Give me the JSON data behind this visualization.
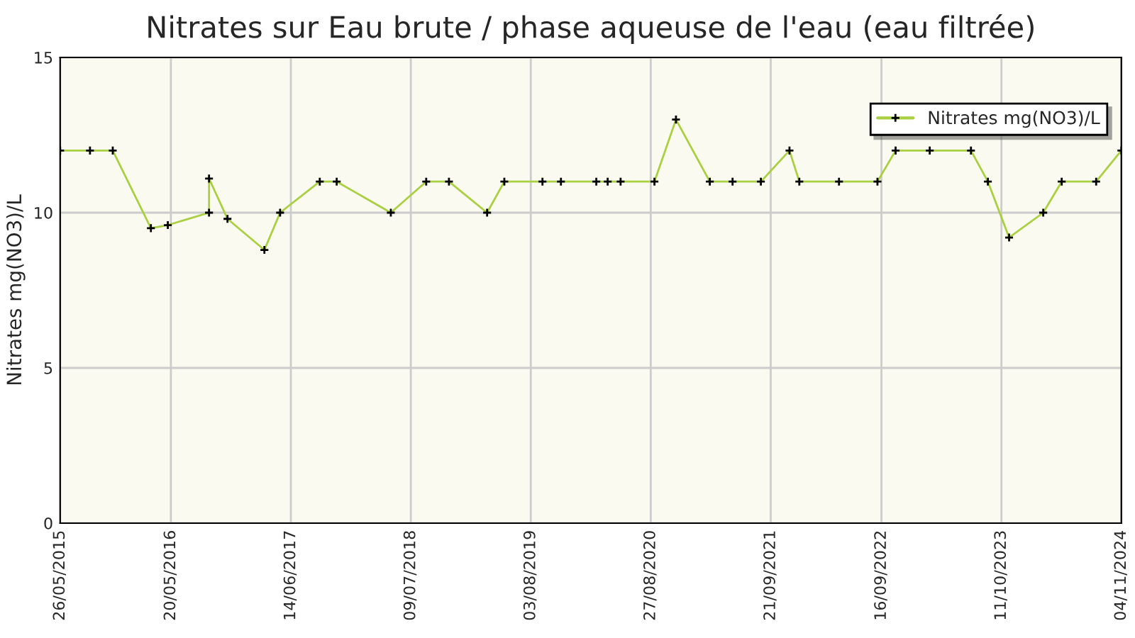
{
  "chart_data": {
    "type": "line",
    "title": "Nitrates sur Eau brute / phase aqueuse de l'eau (eau filtrée)",
    "ylabel": "Nitrates mg(NO3)/L",
    "x": [
      "2015-05-26",
      "2015-08-31",
      "2015-11-13",
      "2016-03-16",
      "2016-05-10",
      "2016-09-21",
      "2016-09-21",
      "2016-11-20",
      "2017-03-20",
      "2017-05-10",
      "2017-09-16",
      "2017-11-10",
      "2018-05-05",
      "2018-08-28",
      "2018-11-10",
      "2019-03-14",
      "2019-05-09",
      "2019-09-10",
      "2019-11-09",
      "2020-03-03",
      "2020-04-09",
      "2020-05-21",
      "2020-09-08",
      "2020-11-17",
      "2021-03-07",
      "2021-05-20",
      "2021-08-20",
      "2021-11-21",
      "2021-12-23",
      "2022-05-01",
      "2022-09-03",
      "2022-11-01",
      "2023-02-20",
      "2023-07-04",
      "2023-08-28",
      "2023-11-05",
      "2024-02-24",
      "2024-04-24",
      "2024-08-14",
      "2024-11-04"
    ],
    "series": [
      {
        "name": "Nitrates mg(NO3)/L",
        "color": "#a8d040",
        "values": [
          12,
          12,
          12,
          9.5,
          9.6,
          10,
          11.1,
          9.8,
          8.8,
          10,
          11,
          11,
          10,
          11,
          11,
          10,
          11,
          11,
          11,
          11,
          11,
          11,
          11,
          13,
          11,
          11,
          11,
          12,
          11,
          11,
          11,
          12,
          12,
          12,
          11,
          9.2,
          10,
          11,
          11,
          12
        ]
      }
    ],
    "xlim": [
      "2015-05-26",
      "2024-11-04"
    ],
    "xticks": [
      {
        "value": "2015-05-26",
        "label": "26/05/2015"
      },
      {
        "value": "2016-05-20",
        "label": "20/05/2016"
      },
      {
        "value": "2017-06-14",
        "label": "14/06/2017"
      },
      {
        "value": "2018-07-09",
        "label": "09/07/2018"
      },
      {
        "value": "2019-08-03",
        "label": "03/08/2019"
      },
      {
        "value": "2020-08-27",
        "label": "27/08/2020"
      },
      {
        "value": "2021-09-21",
        "label": "21/09/2021"
      },
      {
        "value": "2022-09-16",
        "label": "16/09/2022"
      },
      {
        "value": "2023-10-11",
        "label": "11/10/2023"
      },
      {
        "value": "2024-11-04",
        "label": "04/11/2024"
      }
    ],
    "ylim": [
      0,
      15
    ],
    "yticks": [
      0,
      5,
      10,
      15
    ],
    "grid": true,
    "legend": "top right",
    "marker": "cross",
    "line_style": "solid"
  }
}
